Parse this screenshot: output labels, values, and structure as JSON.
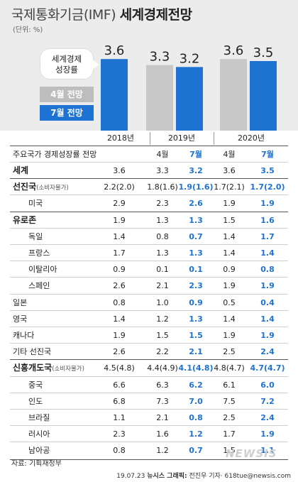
{
  "header": {
    "title_prefix": "국제통화기금(IMF)",
    "title_main": "세계경제전망",
    "unit": "(단위: %)"
  },
  "legend": {
    "bubble_line1": "세계경제",
    "bubble_line2": "성장률",
    "april": "4월 전망",
    "july": "7월 전망"
  },
  "colors": {
    "april_bar": "#c8c8c8",
    "july_bar": "#1e73d2",
    "highlight": "#1e73d2"
  },
  "chart_data": {
    "type": "bar",
    "categories": [
      "2018년",
      "2019년",
      "2020년"
    ],
    "series": [
      {
        "name": "4월 전망",
        "values": [
          null,
          3.3,
          3.6
        ]
      },
      {
        "name": "7월 전망",
        "values": [
          3.6,
          3.2,
          3.5
        ]
      }
    ],
    "value_labels": {
      "2018년": [
        "3.6"
      ],
      "2019년": [
        "3.3",
        "3.2"
      ],
      "2020년": [
        "3.6",
        "3.5"
      ]
    }
  },
  "table": {
    "years": [
      "2018년",
      "2019년",
      "2020년"
    ],
    "header": {
      "label": "주요국가 경제성장률 전망",
      "apr": "4월",
      "jul": "7월"
    },
    "rows": [
      {
        "name": "세계",
        "sub": "",
        "bold": true,
        "indent": 0,
        "v2018": "3.6",
        "a2019": "3.3",
        "j2019": "3.2",
        "a2020": "3.6",
        "j2020": "3.5"
      },
      {
        "name": "선진국",
        "sub": "(소비자물가)",
        "bold": true,
        "indent": 0,
        "v2018": "2.2(2.0)",
        "a2019": "1.8(1.6)",
        "j2019": "1.9(1.6)",
        "a2020": "1.7(2.1)",
        "j2020": "1.7(2.0)"
      },
      {
        "name": "미국",
        "sub": "",
        "bold": false,
        "indent": 1,
        "v2018": "2.9",
        "a2019": "2.3",
        "j2019": "2.6",
        "a2020": "1.9",
        "j2020": "1.9"
      },
      {
        "name": "유로존",
        "sub": "",
        "bold": true,
        "indent": 0,
        "v2018": "1.9",
        "a2019": "1.3",
        "j2019": "1.3",
        "a2020": "1.5",
        "j2020": "1.6"
      },
      {
        "name": "독일",
        "sub": "",
        "bold": false,
        "indent": 1,
        "v2018": "1.4",
        "a2019": "0.8",
        "j2019": "0.7",
        "a2020": "1.4",
        "j2020": "1.7"
      },
      {
        "name": "프랑스",
        "sub": "",
        "bold": false,
        "indent": 1,
        "v2018": "1.7",
        "a2019": "1.3",
        "j2019": "1.3",
        "a2020": "1.4",
        "j2020": "1.4"
      },
      {
        "name": "이탈리아",
        "sub": "",
        "bold": false,
        "indent": 1,
        "v2018": "0.9",
        "a2019": "0.1",
        "j2019": "0.1",
        "a2020": "0.9",
        "j2020": "0.8"
      },
      {
        "name": "스페인",
        "sub": "",
        "bold": false,
        "indent": 1,
        "v2018": "2.6",
        "a2019": "2.1",
        "j2019": "2.3",
        "a2020": "1.9",
        "j2020": "1.9"
      },
      {
        "name": "일본",
        "sub": "",
        "bold": false,
        "indent": 0,
        "v2018": "0.8",
        "a2019": "1.0",
        "j2019": "0.9",
        "a2020": "0.5",
        "j2020": "0.4"
      },
      {
        "name": "영국",
        "sub": "",
        "bold": false,
        "indent": 0,
        "v2018": "1.4",
        "a2019": "1.2",
        "j2019": "1.3",
        "a2020": "1.4",
        "j2020": "1.4"
      },
      {
        "name": "캐나다",
        "sub": "",
        "bold": false,
        "indent": 0,
        "v2018": "1.9",
        "a2019": "1.5",
        "j2019": "1.5",
        "a2020": "1.9",
        "j2020": "1.9"
      },
      {
        "name": "기타 선진국",
        "sub": "",
        "bold": false,
        "indent": 0,
        "v2018": "2.6",
        "a2019": "2.2",
        "j2019": "2.1",
        "a2020": "2.5",
        "j2020": "2.4"
      },
      {
        "name": "신흥개도국",
        "sub": "(소비자물가)",
        "bold": true,
        "indent": 0,
        "v2018": "4.5(4.8)",
        "a2019": "4.4(4.9)",
        "j2019": "4.1(4.8)",
        "a2020": "4.8(4.7)",
        "j2020": "4.7(4.7)"
      },
      {
        "name": "중국",
        "sub": "",
        "bold": false,
        "indent": 1,
        "v2018": "6.6",
        "a2019": "6.3",
        "j2019": "6.2",
        "a2020": "6.1",
        "j2020": "6.0"
      },
      {
        "name": "인도",
        "sub": "",
        "bold": false,
        "indent": 1,
        "v2018": "6.8",
        "a2019": "7.3",
        "j2019": "7.0",
        "a2020": "7.5",
        "j2020": "7.2"
      },
      {
        "name": "브라질",
        "sub": "",
        "bold": false,
        "indent": 1,
        "v2018": "1.1",
        "a2019": "2.1",
        "j2019": "0.8",
        "a2020": "2.5",
        "j2020": "2.4"
      },
      {
        "name": "러시아",
        "sub": "",
        "bold": false,
        "indent": 1,
        "v2018": "2.3",
        "a2019": "1.6",
        "j2019": "1.2",
        "a2020": "1.7",
        "j2020": "1.9"
      },
      {
        "name": "남아공",
        "sub": "",
        "bold": false,
        "indent": 1,
        "v2018": "0.8",
        "a2019": "1.2",
        "j2019": "0.7",
        "a2020": "1.5",
        "j2020": "1.1"
      }
    ]
  },
  "footer": {
    "source": "자료: 기획재정부",
    "credit_date": "19.07.23",
    "credit_agency": "뉴시스 그래픽:",
    "credit_author": "전진우 기자· 618tue@newsis.com",
    "logo": "NEWSIS"
  }
}
